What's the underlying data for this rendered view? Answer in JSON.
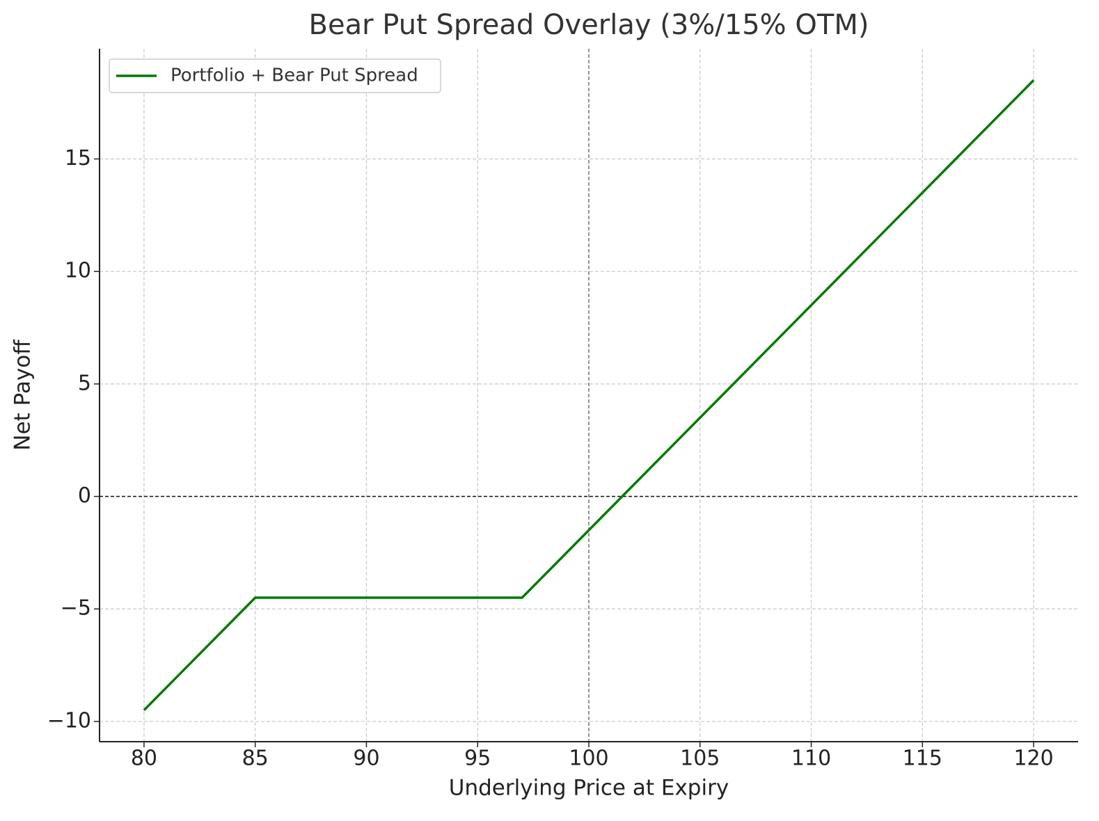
{
  "chart_data": {
    "type": "line",
    "title": "Bear Put Spread Overlay (3%/15% OTM)",
    "x_label": "Underlying Price at Expiry",
    "y_label": "Net Payoff",
    "x": [
      80,
      85,
      97,
      120
    ],
    "series": [
      {
        "name": "Portfolio + Bear Put Spread",
        "color": "#007a00",
        "values": [
          -9.5,
          -4.5,
          -4.5,
          18.5
        ]
      }
    ],
    "xlim": [
      78,
      122
    ],
    "ylim": [
      -10.9,
      19.9
    ],
    "xticks": [
      80,
      85,
      90,
      95,
      100,
      105,
      110,
      115,
      120
    ],
    "yticks": [
      {
        "value": -10,
        "label": "−10"
      },
      {
        "value": -5,
        "label": "−5"
      },
      0,
      5,
      10,
      15
    ],
    "reference_lines": {
      "y": 0,
      "x": 100
    },
    "grid": true,
    "legend": "upper-left"
  }
}
